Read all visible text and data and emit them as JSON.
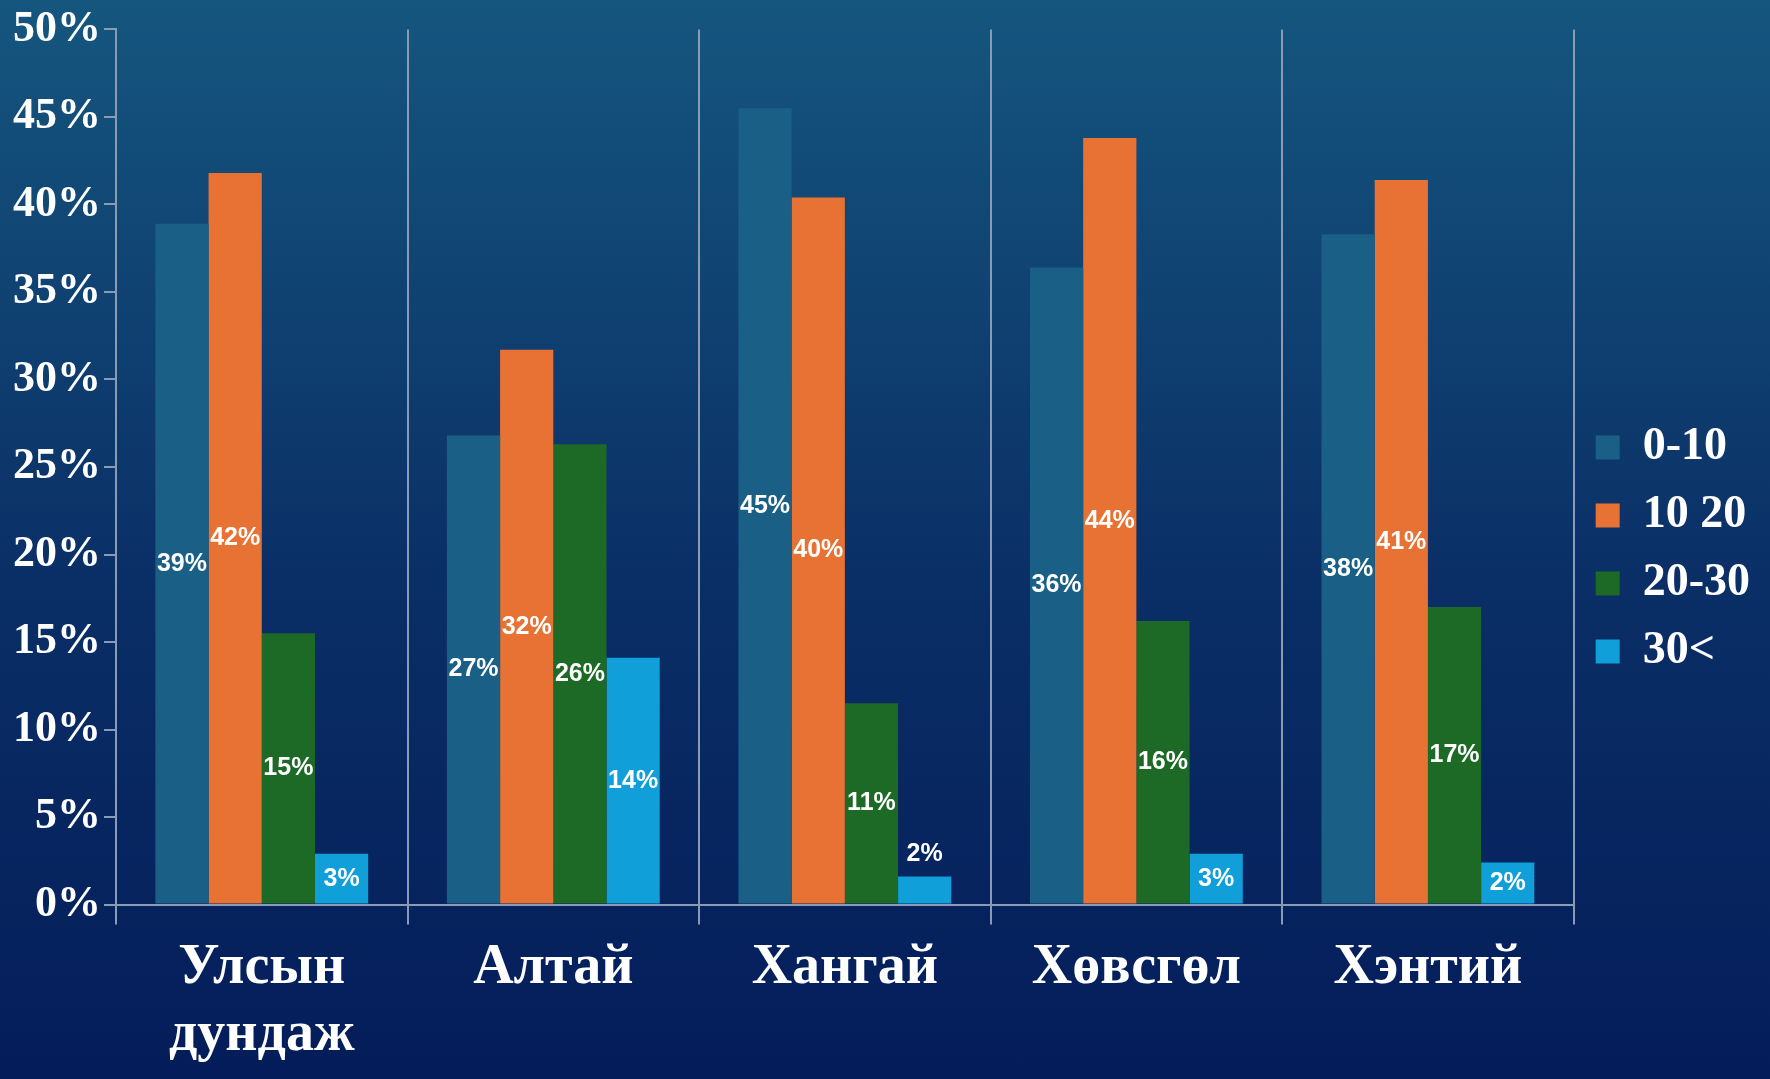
{
  "chart_data": {
    "type": "bar",
    "categories": [
      "Улсын дундаж",
      "Алтай",
      "Хангай",
      "Хөвсгөл",
      "Хэнтий"
    ],
    "series": [
      {
        "name": "0-10",
        "color": "#1a5f86",
        "values": [
          38.9,
          26.8,
          45.5,
          36.4,
          38.3
        ],
        "value_labels": [
          "39%",
          "27%",
          "45%",
          "36%",
          "38%"
        ]
      },
      {
        "name": "10 20",
        "color": "#e87234",
        "values": [
          41.8,
          31.7,
          40.4,
          43.8,
          41.4
        ],
        "value_labels": [
          "42%",
          "32%",
          "40%",
          "44%",
          "41%"
        ]
      },
      {
        "name": "20-30",
        "color": "#1d6a27",
        "values": [
          15.5,
          26.3,
          11.5,
          16.2,
          17.0
        ],
        "value_labels": [
          "15%",
          "26%",
          "11%",
          "16%",
          "17%"
        ]
      },
      {
        "name": "30<",
        "color": "#109fd8",
        "values": [
          2.9,
          14.1,
          1.6,
          2.9,
          2.4
        ],
        "value_labels": [
          "3%",
          "14%",
          "2%",
          "3%",
          "2%"
        ]
      }
    ],
    "ylim": [
      0,
      50
    ],
    "yticks": [
      {
        "value": 0,
        "label": "0%"
      },
      {
        "value": 5,
        "label": "5%"
      },
      {
        "value": 10,
        "label": "10%"
      },
      {
        "value": 15,
        "label": "15%"
      },
      {
        "value": 20,
        "label": "20%"
      },
      {
        "value": 25,
        "label": "25%"
      },
      {
        "value": 30,
        "label": "30%"
      },
      {
        "value": 35,
        "label": "35%"
      },
      {
        "value": 40,
        "label": "40%"
      },
      {
        "value": 45,
        "label": "45%"
      },
      {
        "value": 50,
        "label": "50%"
      }
    ],
    "grid": "x",
    "legend": "right"
  }
}
